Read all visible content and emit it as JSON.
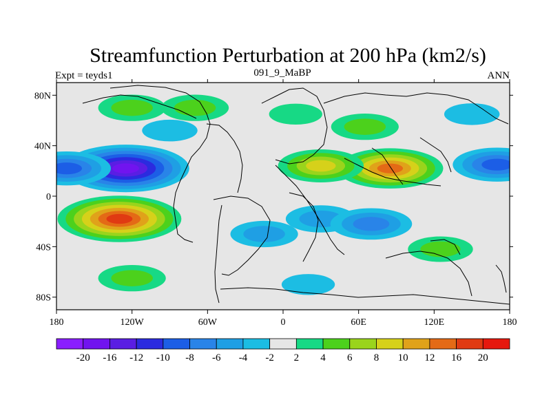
{
  "chart_data": {
    "type": "heatmap",
    "title": "Streamfunction Perturbation at 200 hPa (km2/s)",
    "subtitle_left": "Expt = teyds1",
    "subtitle_center": "091_9_MaBP",
    "subtitle_right": "ANN",
    "xlim": [
      -180,
      180
    ],
    "ylim": [
      -90,
      90
    ],
    "x_ticks": [
      {
        "value": -180,
        "label": "180"
      },
      {
        "value": -120,
        "label": "120W"
      },
      {
        "value": -60,
        "label": "60W"
      },
      {
        "value": 0,
        "label": "0"
      },
      {
        "value": 60,
        "label": "60E"
      },
      {
        "value": 120,
        "label": "120E"
      },
      {
        "value": 180,
        "label": "180"
      }
    ],
    "y_ticks": [
      {
        "value": 80,
        "label": "80N"
      },
      {
        "value": 40,
        "label": "40N"
      },
      {
        "value": 0,
        "label": "0"
      },
      {
        "value": -40,
        "label": "40S"
      },
      {
        "value": -80,
        "label": "80S"
      }
    ],
    "colorbar": {
      "levels": [
        -20,
        -16,
        -12,
        -10,
        -8,
        -6,
        -4,
        -2,
        2,
        4,
        6,
        8,
        10,
        12,
        16,
        20
      ],
      "labels": [
        "-20",
        "-16",
        "-12",
        "-10",
        "-8",
        "-6",
        "-4",
        "-2",
        "2",
        "4",
        "6",
        "8",
        "10",
        "12",
        "16",
        "20"
      ],
      "colors": [
        "#8a1eff",
        "#7114ef",
        "#5a1ee3",
        "#2b2bdf",
        "#1c5ee6",
        "#2984e8",
        "#1f9fe4",
        "#1cbde3",
        "#e6e6e6",
        "#17d985",
        "#4cd11c",
        "#9ad41c",
        "#d6d11a",
        "#e0a21a",
        "#e46a16",
        "#e03a12",
        "#e6180e"
      ]
    },
    "field_centers": [
      {
        "lon": -125,
        "lat": 22,
        "value": -19
      },
      {
        "lon": -172,
        "lat": 22,
        "value": -9
      },
      {
        "lon": 170,
        "lat": 25,
        "value": -9
      },
      {
        "lon": -90,
        "lat": 52,
        "value": -4
      },
      {
        "lon": -120,
        "lat": 70,
        "value": 5
      },
      {
        "lon": -70,
        "lat": 70,
        "value": 5
      },
      {
        "lon": 10,
        "lat": 65,
        "value": 3
      },
      {
        "lon": 65,
        "lat": 55,
        "value": 5
      },
      {
        "lon": 150,
        "lat": 65,
        "value": -4
      },
      {
        "lon": 85,
        "lat": 22,
        "value": 13
      },
      {
        "lon": 30,
        "lat": 24,
        "value": 8
      },
      {
        "lon": -130,
        "lat": -18,
        "value": 18
      },
      {
        "lon": 30,
        "lat": -18,
        "value": -6
      },
      {
        "lon": 70,
        "lat": -22,
        "value": -8
      },
      {
        "lon": -15,
        "lat": -30,
        "value": -5
      },
      {
        "lon": -120,
        "lat": -65,
        "value": 5
      },
      {
        "lon": 20,
        "lat": -70,
        "value": -3
      },
      {
        "lon": 125,
        "lat": -42,
        "value": 4
      }
    ]
  }
}
